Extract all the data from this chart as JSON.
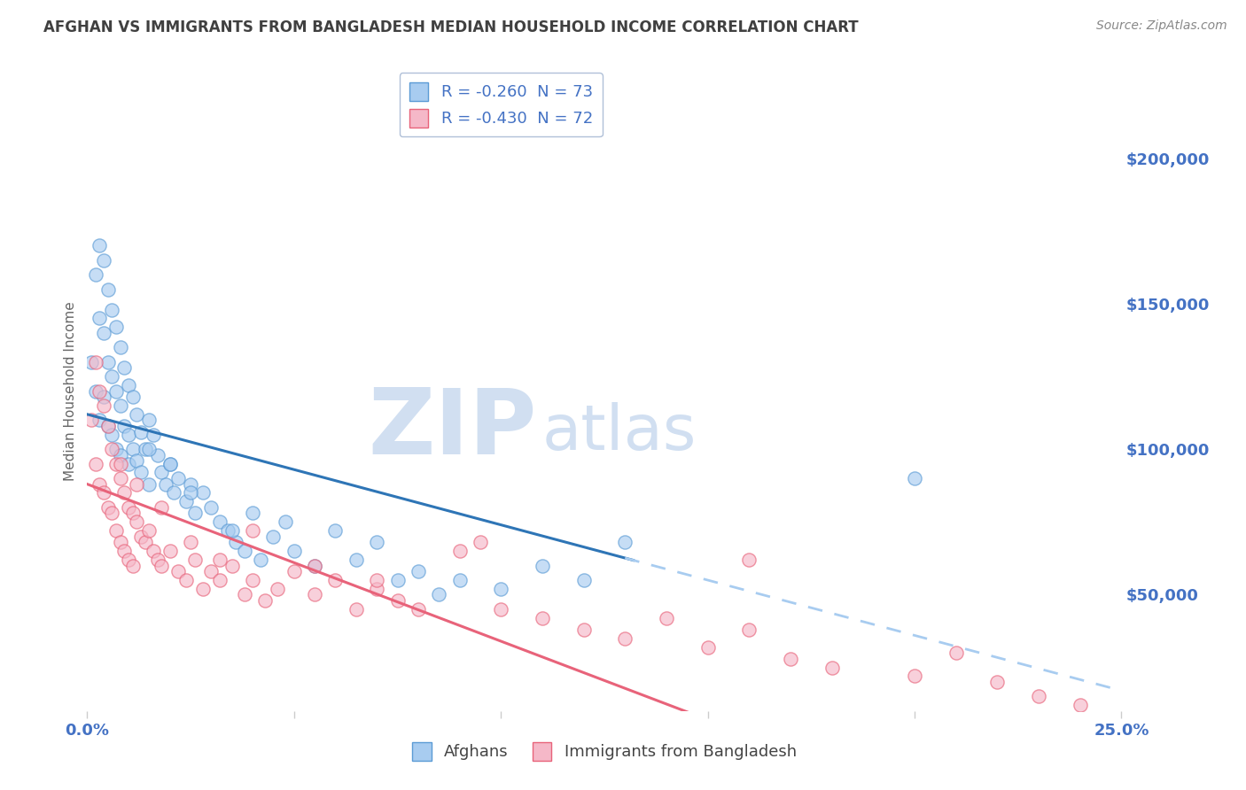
{
  "title": "AFGHAN VS IMMIGRANTS FROM BANGLADESH MEDIAN HOUSEHOLD INCOME CORRELATION CHART",
  "source": "Source: ZipAtlas.com",
  "ylabel": "Median Household Income",
  "xlim": [
    0.0,
    0.25
  ],
  "ylim": [
    10000,
    230000
  ],
  "ytick_values": [
    50000,
    100000,
    150000,
    200000
  ],
  "ytick_labels": [
    "$50,000",
    "$100,000",
    "$150,000",
    "$200,000"
  ],
  "series1_name": "Afghans",
  "series1_color": "#a8ccf0",
  "series1_edge": "#5b9bd5",
  "series1_R": -0.26,
  "series1_N": 73,
  "series2_name": "Immigrants from Bangladesh",
  "series2_color": "#f5b8c8",
  "series2_edge": "#e8637a",
  "series2_R": -0.43,
  "series2_N": 72,
  "line1_color": "#2e75b6",
  "line2_color": "#e8637a",
  "line1_dashed_color": "#a8ccf0",
  "background_color": "#ffffff",
  "grid_color": "#c8d8e8",
  "watermark_zip_color": "#ccdcf0",
  "watermark_atlas_color": "#ccdcf0",
  "title_color": "#404040",
  "axis_label_color": "#4472c4",
  "title_fontsize": 12,
  "source_fontsize": 10,
  "line1_intercept": 112000,
  "line1_slope": -380000,
  "line2_intercept": 88000,
  "line2_slope": -540000,
  "afghans_x": [
    0.001,
    0.002,
    0.002,
    0.003,
    0.003,
    0.003,
    0.004,
    0.004,
    0.004,
    0.005,
    0.005,
    0.005,
    0.006,
    0.006,
    0.006,
    0.007,
    0.007,
    0.007,
    0.008,
    0.008,
    0.008,
    0.009,
    0.009,
    0.01,
    0.01,
    0.01,
    0.011,
    0.011,
    0.012,
    0.012,
    0.013,
    0.013,
    0.014,
    0.015,
    0.015,
    0.016,
    0.017,
    0.018,
    0.019,
    0.02,
    0.021,
    0.022,
    0.024,
    0.025,
    0.026,
    0.028,
    0.03,
    0.032,
    0.034,
    0.036,
    0.038,
    0.04,
    0.042,
    0.045,
    0.05,
    0.055,
    0.06,
    0.065,
    0.07,
    0.08,
    0.09,
    0.1,
    0.11,
    0.12,
    0.13,
    0.2,
    0.035,
    0.048,
    0.075,
    0.085,
    0.015,
    0.02,
    0.025
  ],
  "afghans_y": [
    130000,
    160000,
    120000,
    170000,
    145000,
    110000,
    165000,
    140000,
    118000,
    155000,
    130000,
    108000,
    148000,
    125000,
    105000,
    142000,
    120000,
    100000,
    135000,
    115000,
    98000,
    128000,
    108000,
    122000,
    105000,
    95000,
    118000,
    100000,
    112000,
    96000,
    106000,
    92000,
    100000,
    110000,
    88000,
    105000,
    98000,
    92000,
    88000,
    95000,
    85000,
    90000,
    82000,
    88000,
    78000,
    85000,
    80000,
    75000,
    72000,
    68000,
    65000,
    78000,
    62000,
    70000,
    65000,
    60000,
    72000,
    62000,
    68000,
    58000,
    55000,
    52000,
    60000,
    55000,
    68000,
    90000,
    72000,
    75000,
    55000,
    50000,
    100000,
    95000,
    85000
  ],
  "bangladesh_x": [
    0.001,
    0.002,
    0.002,
    0.003,
    0.003,
    0.004,
    0.004,
    0.005,
    0.005,
    0.006,
    0.006,
    0.007,
    0.007,
    0.008,
    0.008,
    0.009,
    0.009,
    0.01,
    0.01,
    0.011,
    0.011,
    0.012,
    0.013,
    0.014,
    0.015,
    0.016,
    0.017,
    0.018,
    0.02,
    0.022,
    0.024,
    0.026,
    0.028,
    0.03,
    0.032,
    0.035,
    0.038,
    0.04,
    0.043,
    0.046,
    0.05,
    0.055,
    0.06,
    0.065,
    0.07,
    0.075,
    0.08,
    0.09,
    0.1,
    0.11,
    0.12,
    0.13,
    0.14,
    0.15,
    0.16,
    0.17,
    0.18,
    0.2,
    0.21,
    0.22,
    0.23,
    0.24,
    0.008,
    0.012,
    0.018,
    0.025,
    0.032,
    0.04,
    0.055,
    0.07,
    0.095,
    0.16
  ],
  "bangladesh_y": [
    110000,
    130000,
    95000,
    120000,
    88000,
    115000,
    85000,
    108000,
    80000,
    100000,
    78000,
    95000,
    72000,
    90000,
    68000,
    85000,
    65000,
    80000,
    62000,
    78000,
    60000,
    75000,
    70000,
    68000,
    72000,
    65000,
    62000,
    60000,
    65000,
    58000,
    55000,
    62000,
    52000,
    58000,
    55000,
    60000,
    50000,
    55000,
    48000,
    52000,
    58000,
    50000,
    55000,
    45000,
    52000,
    48000,
    45000,
    65000,
    45000,
    42000,
    38000,
    35000,
    42000,
    32000,
    38000,
    28000,
    25000,
    22000,
    30000,
    20000,
    15000,
    12000,
    95000,
    88000,
    80000,
    68000,
    62000,
    72000,
    60000,
    55000,
    68000,
    62000
  ]
}
